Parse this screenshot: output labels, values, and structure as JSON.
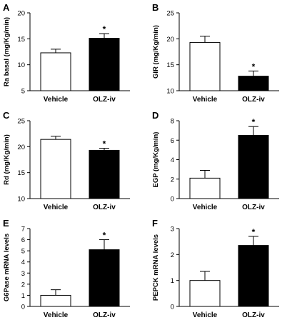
{
  "chart_data": [
    {
      "panel": "A",
      "type": "bar",
      "ylabel": "Ra basal (mg/Kg/min)",
      "ylim": [
        5,
        20
      ],
      "yticks": [
        5,
        10,
        15,
        20
      ],
      "categories": [
        "Vehicle",
        "OLZ-iv"
      ],
      "values": [
        12.3,
        15.1
      ],
      "errors": [
        0.7,
        0.9
      ],
      "fills": [
        "#ffffff",
        "#000000"
      ],
      "annotations": [
        "",
        "*"
      ]
    },
    {
      "panel": "B",
      "type": "bar",
      "ylabel": "GIR (mg/Kg/min)",
      "ylim": [
        10,
        25
      ],
      "yticks": [
        10,
        15,
        20,
        25
      ],
      "categories": [
        "Vehicle",
        "OLZ-iv"
      ],
      "values": [
        19.3,
        12.8
      ],
      "errors": [
        1.2,
        1.0
      ],
      "fills": [
        "#ffffff",
        "#000000"
      ],
      "annotations": [
        "",
        "*"
      ]
    },
    {
      "panel": "C",
      "type": "bar",
      "ylabel": "Rd (mg/Kg/min)",
      "ylim": [
        10,
        25
      ],
      "yticks": [
        10,
        15,
        20,
        25
      ],
      "categories": [
        "Vehicle",
        "OLZ-iv"
      ],
      "values": [
        21.4,
        19.3
      ],
      "errors": [
        0.6,
        0.4
      ],
      "fills": [
        "#ffffff",
        "#000000"
      ],
      "annotations": [
        "",
        "*"
      ]
    },
    {
      "panel": "D",
      "type": "bar",
      "ylabel": "EGP (mg/Kg/min)",
      "ylim": [
        0,
        8
      ],
      "yticks": [
        0,
        2,
        4,
        6,
        8
      ],
      "categories": [
        "Vehicle",
        "OLZ-iv"
      ],
      "values": [
        2.1,
        6.5
      ],
      "errors": [
        0.8,
        0.9
      ],
      "fills": [
        "#ffffff",
        "#000000"
      ],
      "annotations": [
        "",
        "*"
      ]
    },
    {
      "panel": "E",
      "type": "bar",
      "ylabel": "G6Pase mRNA levels",
      "ylim": [
        0,
        7
      ],
      "yticks": [
        0,
        1,
        2,
        3,
        4,
        5,
        6,
        7
      ],
      "categories": [
        "Vehicle",
        "OLZ-iv"
      ],
      "values": [
        1.0,
        5.1
      ],
      "errors": [
        0.5,
        0.9
      ],
      "fills": [
        "#ffffff",
        "#000000"
      ],
      "annotations": [
        "",
        "*"
      ]
    },
    {
      "panel": "F",
      "type": "bar",
      "ylabel": "PEPCK mRNA levels",
      "ylim": [
        0,
        3
      ],
      "yticks": [
        0,
        1,
        2,
        3
      ],
      "categories": [
        "Vehicle",
        "OLZ-iv"
      ],
      "values": [
        1.0,
        2.35
      ],
      "errors": [
        0.35,
        0.35
      ],
      "fills": [
        "#ffffff",
        "#000000"
      ],
      "annotations": [
        "",
        "*"
      ]
    }
  ]
}
